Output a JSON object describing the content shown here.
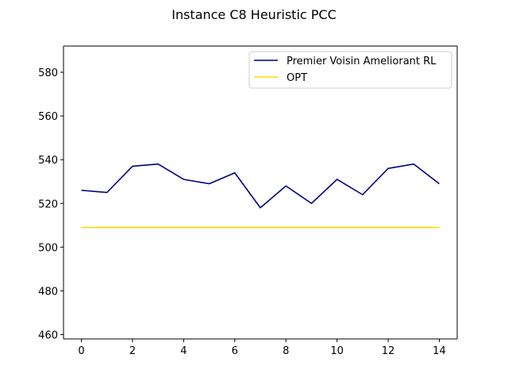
{
  "chart_data": {
    "type": "line",
    "title": "Instance C8 Heuristic PCC",
    "xlabel": "",
    "ylabel": "",
    "x": [
      0,
      1,
      2,
      3,
      4,
      5,
      6,
      7,
      8,
      9,
      10,
      11,
      12,
      13,
      14
    ],
    "xlim": [
      -0.7,
      14.7
    ],
    "ylim": [
      458,
      592
    ],
    "xticks": [
      0,
      2,
      4,
      6,
      8,
      10,
      12,
      14
    ],
    "yticks": [
      460,
      480,
      500,
      520,
      540,
      560,
      580
    ],
    "grid": false,
    "legend_position": "upper right",
    "series": [
      {
        "name": "Premier Voisin Ameliorant RL",
        "color": "#000080",
        "values": [
          526,
          525,
          537,
          538,
          531,
          529,
          534,
          518,
          528,
          520,
          531,
          524,
          536,
          538,
          529
        ]
      },
      {
        "name": "OPT",
        "color": "#FFD700",
        "values": [
          509,
          509,
          509,
          509,
          509,
          509,
          509,
          509,
          509,
          509,
          509,
          509,
          509,
          509,
          509
        ]
      }
    ]
  }
}
